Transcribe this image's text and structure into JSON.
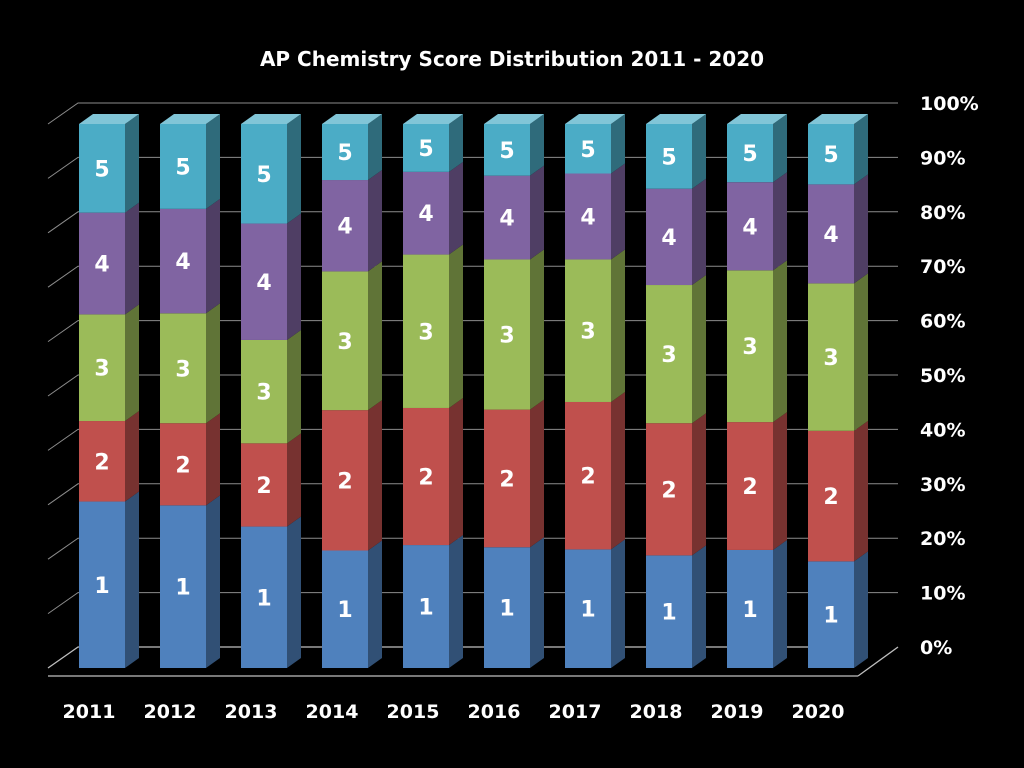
{
  "chart_data": {
    "type": "bar",
    "stacked": true,
    "percent_stacked": true,
    "title": "AP Chemistry Score Distribution 2011 - 2020",
    "categories": [
      "2011",
      "2012",
      "2013",
      "2014",
      "2015",
      "2016",
      "2017",
      "2018",
      "2019",
      "2020"
    ],
    "y_ticks": [
      "0%",
      "10%",
      "20%",
      "30%",
      "40%",
      "50%",
      "60%",
      "70%",
      "80%",
      "90%",
      "100%"
    ],
    "ylim": [
      0,
      100
    ],
    "grid": true,
    "legend": "none",
    "series": [
      {
        "label": "1",
        "color": "#4f81bd",
        "values": [
          30.6,
          29.9,
          26.0,
          21.6,
          22.6,
          22.2,
          21.8,
          20.7,
          21.7,
          19.6
        ]
      },
      {
        "label": "2",
        "color": "#c0504d",
        "values": [
          14.8,
          15.1,
          15.3,
          25.8,
          25.2,
          25.3,
          27.1,
          24.3,
          23.5,
          24.0
        ]
      },
      {
        "label": "3",
        "color": "#9bbb59",
        "values": [
          19.6,
          20.2,
          19.0,
          25.5,
          28.2,
          27.6,
          26.2,
          25.4,
          27.9,
          27.1
        ]
      },
      {
        "label": "4",
        "color": "#8064a2",
        "values": [
          18.7,
          19.2,
          21.4,
          16.8,
          15.2,
          15.4,
          15.8,
          17.7,
          16.2,
          18.2
        ]
      },
      {
        "label": "5",
        "color": "#4bacc6",
        "values": [
          16.3,
          15.6,
          18.3,
          10.3,
          8.8,
          9.5,
          9.1,
          11.9,
          10.7,
          11.1
        ]
      }
    ]
  }
}
